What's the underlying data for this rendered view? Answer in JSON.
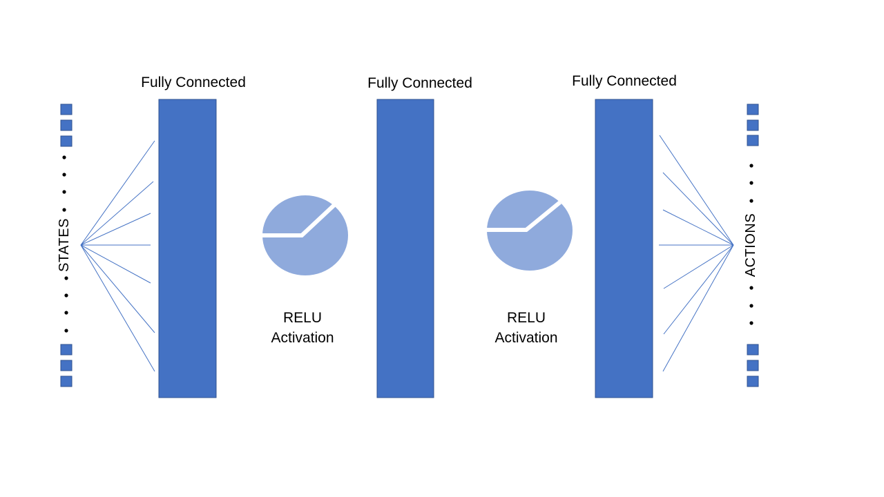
{
  "colors": {
    "layer_fill": "#4472c4",
    "layer_stroke": "#2f528f",
    "node_fill": "#4472c4",
    "connection_line": "#4472c4",
    "relu_fill": "#8faadc",
    "text": "#000000",
    "background": "#ffffff"
  },
  "layers": [
    {
      "label": "Fully Connected"
    },
    {
      "label": "Fully Connected"
    },
    {
      "label": "Fully Connected"
    }
  ],
  "activations": [
    {
      "line1": "RELU",
      "line2": "Activation",
      "icon": "relu-icon"
    },
    {
      "line1": "RELU",
      "line2": "Activation",
      "icon": "relu-icon"
    }
  ],
  "input": {
    "label": "STATES",
    "node_count_top": 3,
    "node_count_bottom": 3
  },
  "output": {
    "label": "ACTIONS",
    "node_count_top": 3,
    "node_count_bottom": 3
  }
}
